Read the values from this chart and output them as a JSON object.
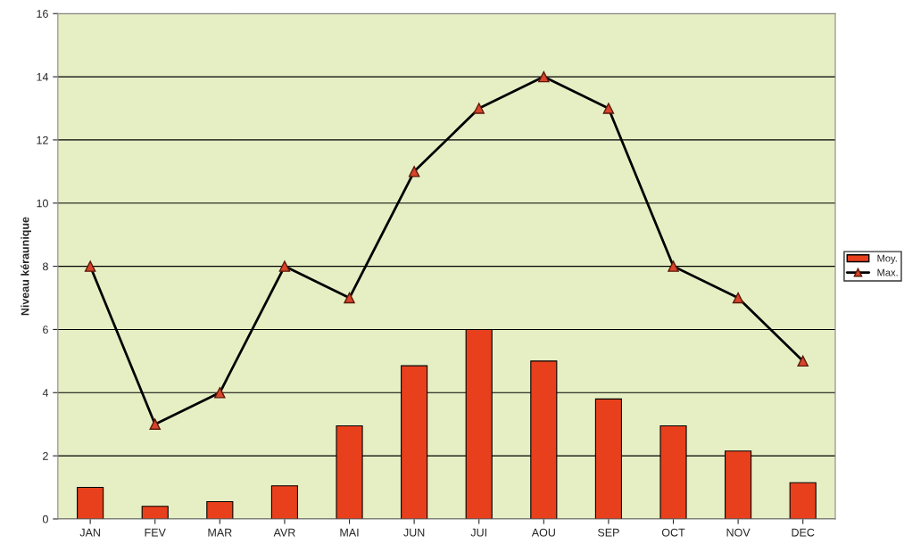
{
  "chart_data": {
    "type": "bar",
    "ylabel": "Niveau kéraunique",
    "categories": [
      "JAN",
      "FEV",
      "MAR",
      "AVR",
      "MAI",
      "JUN",
      "JUI",
      "AOU",
      "SEP",
      "OCT",
      "NOV",
      "DEC"
    ],
    "series": [
      {
        "name": "Moy.",
        "color": "#e8401c",
        "values": [
          1.0,
          0.4,
          0.55,
          1.05,
          2.95,
          4.85,
          6.0,
          5.0,
          3.8,
          2.95,
          2.15,
          1.15
        ]
      },
      {
        "name": "Max.",
        "type": "line",
        "color": "#000000",
        "marker": "triangle",
        "values": [
          8,
          3,
          4,
          8,
          7,
          11,
          13,
          14,
          13,
          8,
          7,
          5
        ]
      }
    ],
    "ylim": [
      0,
      16
    ],
    "yticks": [
      0,
      2,
      4,
      6,
      8,
      10,
      12,
      14,
      16
    ],
    "grid": "y",
    "legend": "right"
  }
}
